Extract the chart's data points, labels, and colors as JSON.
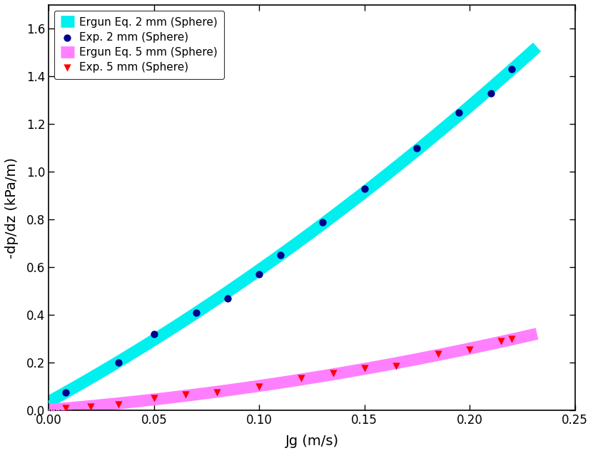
{
  "title": "",
  "xlabel": "Jg (m/s)",
  "ylabel": "-dp/dz (kPa/m)",
  "xlim": [
    0.0,
    0.25
  ],
  "ylim": [
    0.0,
    1.7
  ],
  "xticks": [
    0.0,
    0.05,
    0.1,
    0.15,
    0.2,
    0.25
  ],
  "yticks": [
    0.0,
    0.2,
    0.4,
    0.6,
    0.8,
    1.0,
    1.2,
    1.4,
    1.6
  ],
  "exp_2mm_x": [
    0.008,
    0.033,
    0.05,
    0.07,
    0.085,
    0.1,
    0.11,
    0.13,
    0.15,
    0.175,
    0.195,
    0.21,
    0.22
  ],
  "exp_2mm_y": [
    0.075,
    0.2,
    0.32,
    0.41,
    0.47,
    0.57,
    0.65,
    0.79,
    0.93,
    1.1,
    1.25,
    1.33,
    1.43
  ],
  "exp_5mm_x": [
    0.008,
    0.02,
    0.033,
    0.05,
    0.065,
    0.08,
    0.1,
    0.12,
    0.135,
    0.15,
    0.165,
    0.185,
    0.2,
    0.215,
    0.22
  ],
  "exp_5mm_y": [
    0.01,
    0.015,
    0.025,
    0.05,
    0.065,
    0.075,
    0.1,
    0.135,
    0.155,
    0.175,
    0.185,
    0.235,
    0.255,
    0.29,
    0.3
  ],
  "ergun_2mm_color": "#00EFEF",
  "ergun_5mm_color": "#FF80FF",
  "exp_2mm_color": "#00008B",
  "exp_5mm_color": "#FF0000",
  "legend_labels": [
    "Ergun Eq. 2 mm (Sphere)",
    "Exp. 2 mm (Sphere)",
    "Ergun Eq. 5 mm (Sphere)",
    "Exp. 5 mm (Sphere)"
  ],
  "background_color": "#FFFFFF"
}
